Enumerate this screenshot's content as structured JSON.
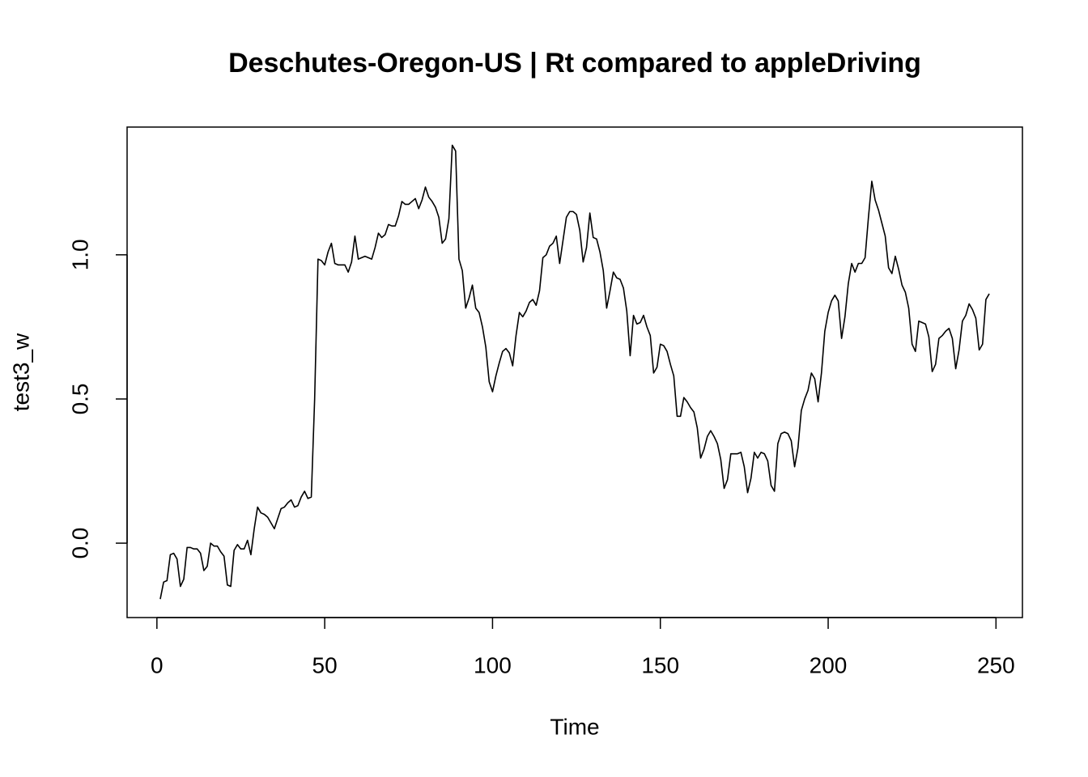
{
  "chart_data": {
    "type": "line",
    "title": "Deschutes-Oregon-US | Rt compared to appleDriving",
    "x_label": "Time",
    "y_label": "test3_w",
    "xlim": [
      -8.88,
      257.88
    ],
    "ylim": [
      -0.258,
      1.443
    ],
    "xticks": [
      0,
      50,
      100,
      150,
      200,
      250
    ],
    "yticks": [
      {
        "value": 0,
        "label": "0.0"
      },
      {
        "value": 0.5,
        "label": "0.5"
      },
      {
        "value": 1,
        "label": "1.0"
      }
    ],
    "x": [
      1,
      2,
      3,
      4,
      5,
      6,
      7,
      8,
      9,
      10,
      11,
      12,
      13,
      14,
      15,
      16,
      17,
      18,
      19,
      20,
      21,
      22,
      23,
      24,
      25,
      26,
      27,
      28,
      29,
      30,
      31,
      32,
      33,
      34,
      35,
      36,
      37,
      38,
      39,
      40,
      41,
      42,
      43,
      44,
      45,
      46,
      47,
      48,
      49,
      50,
      51,
      52,
      53,
      54,
      55,
      56,
      57,
      58,
      59,
      60,
      61,
      62,
      63,
      64,
      65,
      66,
      67,
      68,
      69,
      70,
      71,
      72,
      73,
      74,
      75,
      76,
      77,
      78,
      79,
      80,
      81,
      82,
      83,
      84,
      85,
      86,
      87,
      88,
      89,
      90,
      91,
      92,
      93,
      94,
      95,
      96,
      97,
      98,
      99,
      100,
      101,
      102,
      103,
      104,
      105,
      106,
      107,
      108,
      109,
      110,
      111,
      112,
      113,
      114,
      115,
      116,
      117,
      118,
      119,
      120,
      121,
      122,
      123,
      124,
      125,
      126,
      127,
      128,
      129,
      130,
      131,
      132,
      133,
      134,
      135,
      136,
      137,
      138,
      139,
      140,
      141,
      142,
      143,
      144,
      145,
      146,
      147,
      148,
      149,
      150,
      151,
      152,
      153,
      154,
      155,
      156,
      157,
      158,
      159,
      160,
      161,
      162,
      163,
      164,
      165,
      166,
      167,
      168,
      169,
      170,
      171,
      172,
      173,
      174,
      175,
      176,
      177,
      178,
      179,
      180,
      181,
      182,
      183,
      184,
      185,
      186,
      187,
      188,
      189,
      190,
      191,
      192,
      193,
      194,
      195,
      196,
      197,
      198,
      199,
      200,
      201,
      202,
      203,
      204,
      205,
      206,
      207,
      208,
      209,
      210,
      211,
      212,
      213,
      214,
      215,
      216,
      217,
      218,
      219,
      220,
      221,
      222,
      223,
      224,
      225,
      226,
      227,
      228,
      229,
      230,
      231,
      232,
      233,
      234,
      235,
      236,
      237,
      238,
      239,
      240,
      241,
      242,
      243,
      244,
      245,
      246,
      247,
      248
    ],
    "series": [
      {
        "color": "#000000",
        "values": [
          -0.194,
          -0.135,
          -0.13,
          -0.04,
          -0.035,
          -0.055,
          -0.15,
          -0.125,
          -0.015,
          -0.015,
          -0.02,
          -0.02,
          -0.035,
          -0.095,
          -0.08,
          0.0,
          -0.01,
          -0.01,
          -0.03,
          -0.045,
          -0.145,
          -0.15,
          -0.025,
          -0.005,
          -0.02,
          -0.02,
          0.01,
          -0.04,
          0.05,
          0.125,
          0.105,
          0.1,
          0.09,
          0.07,
          0.05,
          0.085,
          0.12,
          0.125,
          0.14,
          0.15,
          0.125,
          0.13,
          0.16,
          0.18,
          0.155,
          0.16,
          0.5,
          0.985,
          0.98,
          0.965,
          1.01,
          1.04,
          0.97,
          0.965,
          0.965,
          0.965,
          0.94,
          0.975,
          1.065,
          0.985,
          0.99,
          0.995,
          0.99,
          0.985,
          1.025,
          1.075,
          1.06,
          1.07,
          1.105,
          1.1,
          1.1,
          1.135,
          1.185,
          1.175,
          1.175,
          1.185,
          1.195,
          1.16,
          1.19,
          1.235,
          1.2,
          1.185,
          1.165,
          1.13,
          1.04,
          1.055,
          1.125,
          1.38,
          1.36,
          0.985,
          0.945,
          0.815,
          0.85,
          0.895,
          0.815,
          0.8,
          0.75,
          0.68,
          0.56,
          0.525,
          0.58,
          0.625,
          0.665,
          0.675,
          0.66,
          0.615,
          0.72,
          0.8,
          0.785,
          0.805,
          0.835,
          0.845,
          0.825,
          0.875,
          0.99,
          1.0,
          1.03,
          1.04,
          1.065,
          0.97,
          1.05,
          1.13,
          1.15,
          1.15,
          1.14,
          1.085,
          0.975,
          1.025,
          1.145,
          1.06,
          1.055,
          1.01,
          0.945,
          0.815,
          0.875,
          0.94,
          0.92,
          0.915,
          0.885,
          0.805,
          0.65,
          0.79,
          0.76,
          0.765,
          0.79,
          0.75,
          0.72,
          0.59,
          0.61,
          0.69,
          0.685,
          0.665,
          0.62,
          0.58,
          0.44,
          0.44,
          0.505,
          0.49,
          0.47,
          0.455,
          0.4,
          0.295,
          0.325,
          0.37,
          0.39,
          0.37,
          0.345,
          0.29,
          0.19,
          0.22,
          0.31,
          0.31,
          0.31,
          0.315,
          0.265,
          0.175,
          0.225,
          0.315,
          0.295,
          0.315,
          0.31,
          0.285,
          0.2,
          0.18,
          0.345,
          0.38,
          0.385,
          0.38,
          0.355,
          0.265,
          0.33,
          0.46,
          0.5,
          0.53,
          0.59,
          0.57,
          0.49,
          0.59,
          0.735,
          0.8,
          0.84,
          0.86,
          0.84,
          0.71,
          0.785,
          0.9,
          0.97,
          0.94,
          0.97,
          0.97,
          0.99,
          1.13,
          1.255,
          1.19,
          1.155,
          1.11,
          1.065,
          0.955,
          0.935,
          0.995,
          0.95,
          0.895,
          0.87,
          0.815,
          0.69,
          0.665,
          0.77,
          0.765,
          0.76,
          0.715,
          0.595,
          0.62,
          0.71,
          0.72,
          0.735,
          0.745,
          0.71,
          0.605,
          0.67,
          0.77,
          0.79,
          0.83,
          0.81,
          0.78,
          0.67,
          0.69,
          0.845,
          0.865
        ]
      }
    ]
  }
}
